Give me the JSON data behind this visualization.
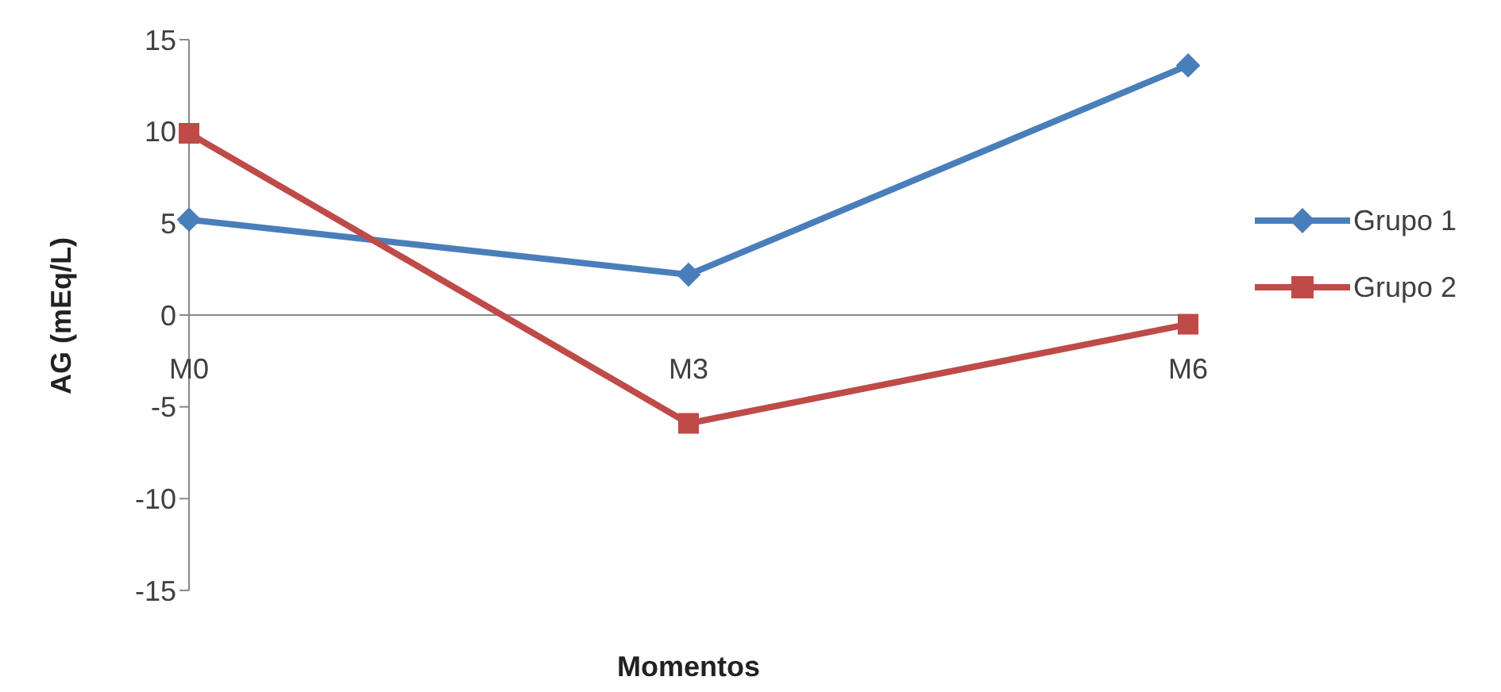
{
  "chart_data": {
    "type": "line",
    "xlabel": "Momentos",
    "ylabel": "AG (mEq/L)",
    "categories": [
      "M0",
      "M3",
      "M6"
    ],
    "series": [
      {
        "name": "Grupo 1",
        "color": "#4a7ebb",
        "marker": "diamond",
        "values": [
          5.2,
          2.2,
          13.6
        ]
      },
      {
        "name": "Grupo 2",
        "color": "#be4b48",
        "marker": "square",
        "values": [
          9.9,
          -5.9,
          -0.5
        ]
      }
    ],
    "ylim": [
      -15,
      15
    ],
    "yticks": [
      -15,
      -10,
      -5,
      0,
      5,
      10,
      15
    ],
    "grid": false,
    "legend": "right"
  }
}
